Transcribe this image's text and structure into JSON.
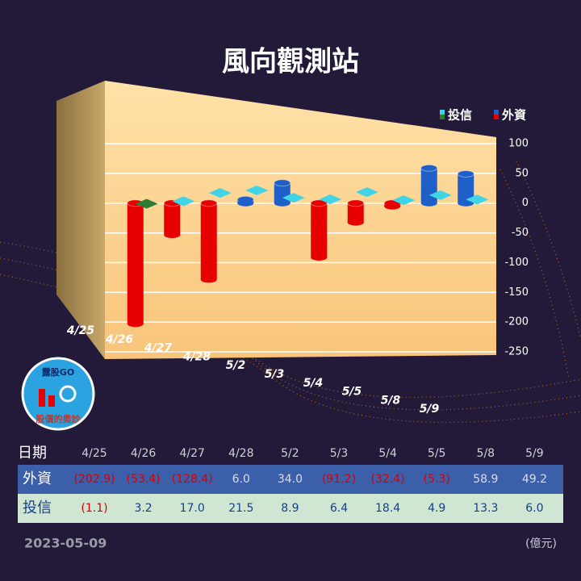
{
  "chart_data": {
    "type": "bar",
    "title": "風向觀測站",
    "categories": [
      "4/25",
      "4/26",
      "4/27",
      "4/28",
      "5/2",
      "5/3",
      "5/4",
      "5/5",
      "5/8",
      "5/9"
    ],
    "series": [
      {
        "name": "外資",
        "color_negative": "#e60000",
        "color_positive": "#1f5fc8",
        "values": [
          -202.9,
          -53.4,
          -128.4,
          6.0,
          34.0,
          -91.2,
          -32.4,
          -5.3,
          58.9,
          49.2
        ],
        "value_labels": [
          "(202.9)",
          "(53.4)",
          "(128.4)",
          "6.0",
          "34.0",
          "(91.2)",
          "(32.4)",
          "(5.3)",
          "58.9",
          "49.2"
        ]
      },
      {
        "name": "投信",
        "color_positive": "#3fd4e6",
        "color_negative": "#2e7d32",
        "values": [
          -1.1,
          3.2,
          17.0,
          21.5,
          8.9,
          6.4,
          18.4,
          4.9,
          13.3,
          6.0
        ],
        "value_labels": [
          "(1.1)",
          "3.2",
          "17.0",
          "21.5",
          "8.9",
          "6.4",
          "18.4",
          "4.9",
          "13.3",
          "6.0"
        ]
      }
    ],
    "ylim": [
      -250,
      100
    ],
    "yticks": [
      100,
      50,
      0,
      -50,
      -100,
      -150,
      -200,
      -250
    ],
    "grid": true,
    "legend": "top-right",
    "table_header": "日期",
    "date": "2023-05-09",
    "unit": "(億元)",
    "logo": {
      "brand": "露股GO",
      "slogan": "股價的奧妙"
    }
  }
}
